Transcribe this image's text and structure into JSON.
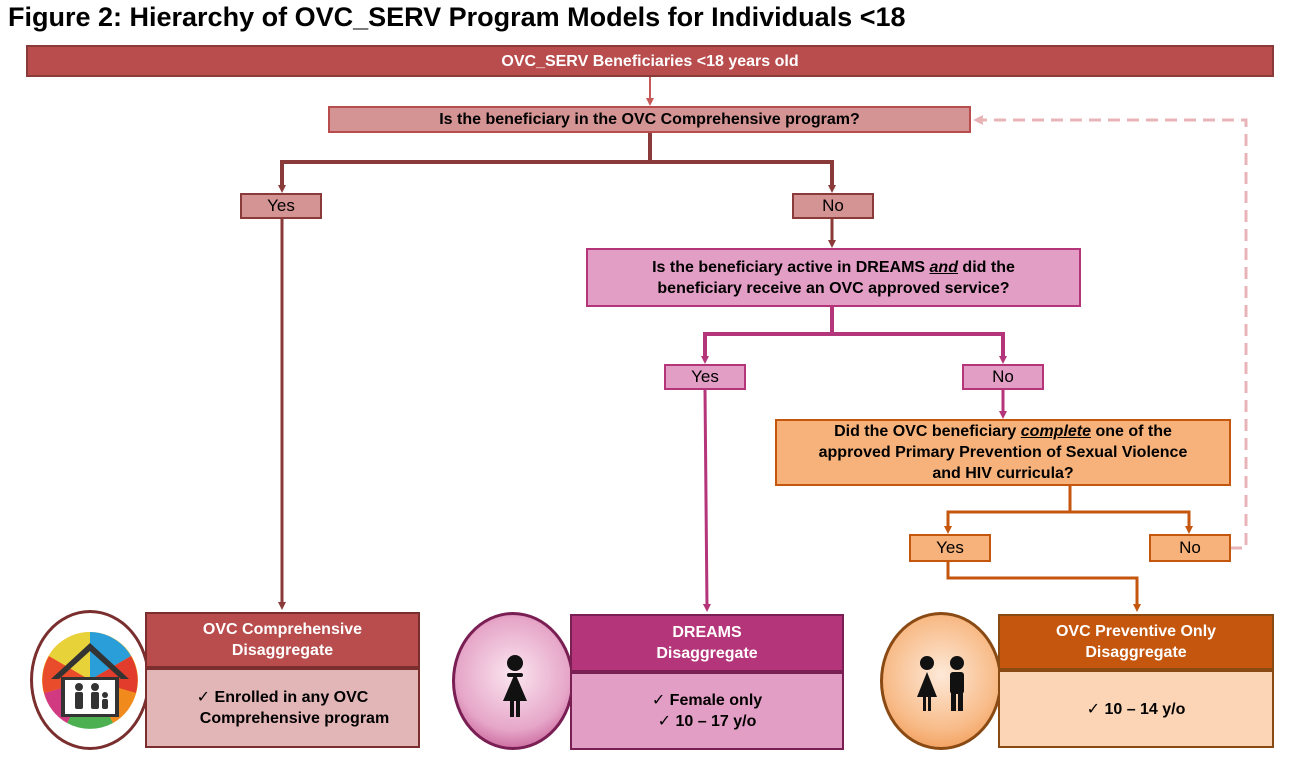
{
  "figure_title": "Figure 2: Hierarchy of OVC_SERV Program Models for Individuals <18",
  "top_bar": "OVC_SERV Beneficiaries <18 years old",
  "q1": "Is the beneficiary in the OVC Comprehensive program?",
  "q1_yes": "Yes",
  "q1_no": "No",
  "q2": {
    "line1_pre": "Is the beneficiary active in DREAMS ",
    "line1_and": "and",
    "line1_post": " did the",
    "line2": "beneficiary receive an OVC approved service?"
  },
  "q2_yes": "Yes",
  "q2_no": "No",
  "q3": {
    "line1_pre": "Did the OVC beneficiary ",
    "line1_em": "complete",
    "line1_post": " one of the",
    "line2": "approved Primary Prevention of Sexual Violence",
    "line3": "and HIV curricula?"
  },
  "q3_yes": "Yes",
  "q3_no": "No",
  "cards": {
    "comprehensive": {
      "title_line1": "OVC Comprehensive",
      "title_line2": "Disaggregate",
      "items": [
        "✓  Enrolled in any OVC",
        "Comprehensive program"
      ]
    },
    "dreams": {
      "title_line1": "DREAMS",
      "title_line2": "Disaggregate",
      "items": [
        "✓  Female only",
        "✓  10 – 17 y/o"
      ]
    },
    "preventive": {
      "title_line1": "OVC Preventive Only",
      "title_line2": "Disaggregate",
      "items": [
        "✓  10 – 14 y/o"
      ]
    }
  },
  "colors": {
    "dark_red": "#b94c4c",
    "dark_red_line": "#8b3a3a",
    "pink_box": "#d49494",
    "magenta": "#b5357a",
    "magenta_light": "#e29ec4",
    "orange": "#c4560e",
    "orange_light": "#f6b27a",
    "peach": "#fbd5b5",
    "dash_pink": "#e8b4b8"
  }
}
